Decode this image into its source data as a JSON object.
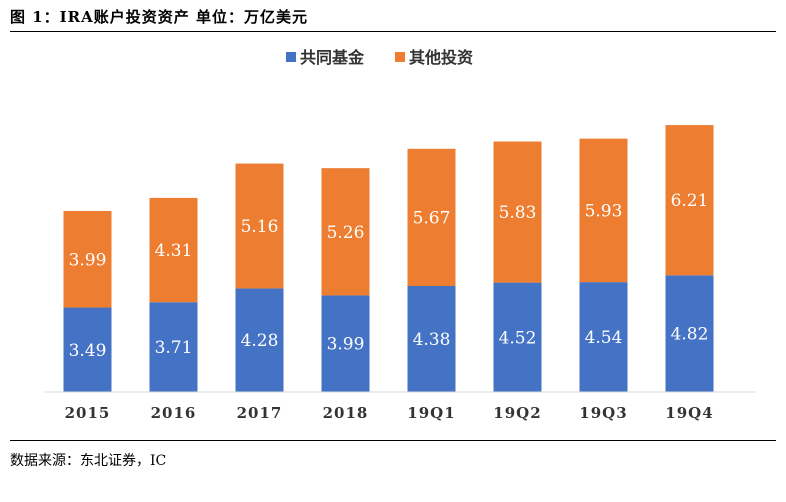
{
  "figure": {
    "title": "图 1：IRA账户投资资产   单位：万亿美元",
    "source": "数据来源：东北证券，IC"
  },
  "chart_data": {
    "type": "bar",
    "stacked": true,
    "title": "",
    "xlabel": "",
    "ylabel": "",
    "ylim": [
      0,
      12
    ],
    "grid": false,
    "legend": "top-center",
    "categories": [
      "2015",
      "2016",
      "2017",
      "2018",
      "19Q1",
      "19Q2",
      "19Q3",
      "19Q4"
    ],
    "series": [
      {
        "name": "共同基金",
        "color": "#4472C4",
        "values": [
          3.49,
          3.71,
          4.28,
          3.99,
          4.38,
          4.52,
          4.54,
          4.82
        ]
      },
      {
        "name": "其他投资",
        "color": "#ED7D31",
        "values": [
          3.99,
          4.31,
          5.16,
          5.26,
          5.67,
          5.83,
          5.93,
          6.21
        ]
      }
    ]
  }
}
